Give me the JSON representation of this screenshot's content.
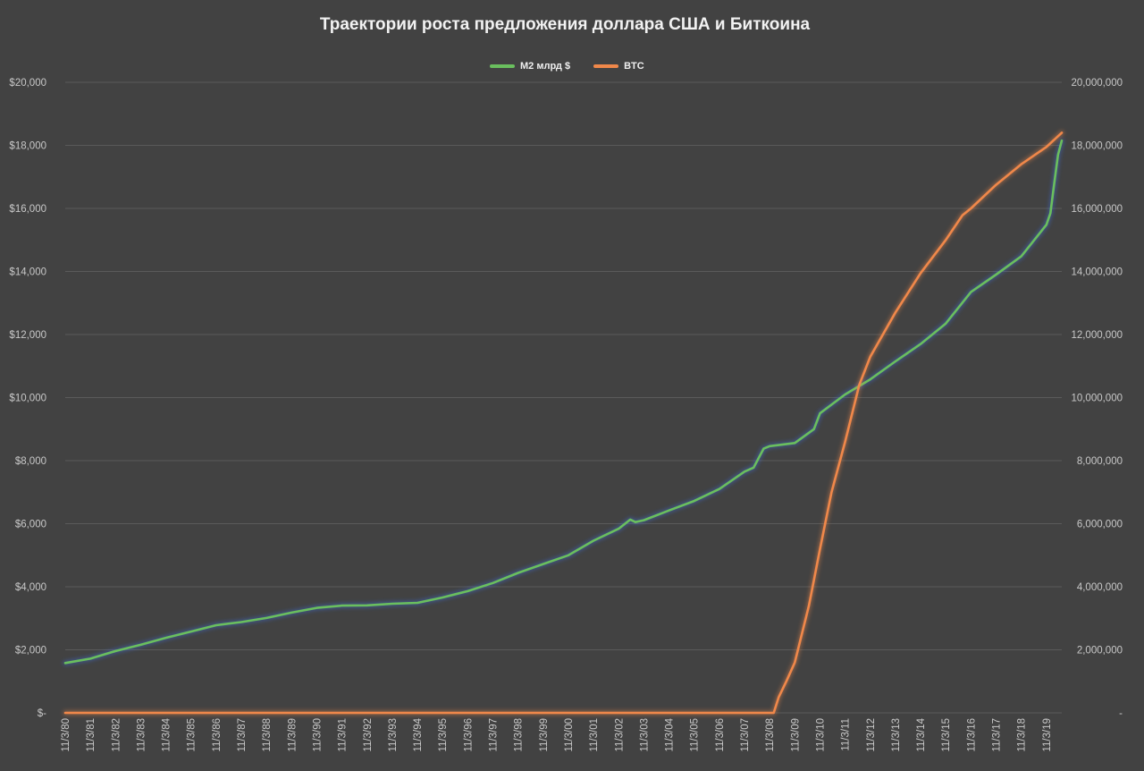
{
  "chart_data": {
    "type": "line",
    "title": "Траектории роста предложения доллара США и Биткоина",
    "legend_position": "top-center",
    "grid": true,
    "x_labels": [
      "11/3/80",
      "11/3/81",
      "11/3/82",
      "11/3/83",
      "11/3/84",
      "11/3/85",
      "11/3/86",
      "11/3/87",
      "11/3/88",
      "11/3/89",
      "11/3/90",
      "11/3/91",
      "11/3/92",
      "11/3/93",
      "11/3/94",
      "11/3/95",
      "11/3/96",
      "11/3/97",
      "11/3/98",
      "11/3/99",
      "11/3/00",
      "11/3/01",
      "11/3/02",
      "11/3/03",
      "11/3/04",
      "11/3/05",
      "11/3/06",
      "11/3/07",
      "11/3/08",
      "11/3/09",
      "11/3/10",
      "11/3/11",
      "11/3/12",
      "11/3/13",
      "11/3/14",
      "11/3/15",
      "11/3/16",
      "11/3/17",
      "11/3/18",
      "11/3/19"
    ],
    "x_range": [
      1980.84,
      2020.45
    ],
    "y_left": {
      "range": [
        0,
        20000
      ],
      "ticks": [
        0,
        2000,
        4000,
        6000,
        8000,
        10000,
        12000,
        14000,
        16000,
        18000,
        20000
      ],
      "tick_labels": [
        "$-",
        "$2,000",
        "$4,000",
        "$6,000",
        "$8,000",
        "$10,000",
        "$12,000",
        "$14,000",
        "$16,000",
        "$18,000",
        "$20,000"
      ]
    },
    "y_right": {
      "range": [
        0,
        20000000
      ],
      "ticks": [
        0,
        2000000,
        4000000,
        6000000,
        8000000,
        10000000,
        12000000,
        14000000,
        16000000,
        18000000,
        20000000
      ],
      "tick_labels": [
        "-",
        "2,000,000",
        "4,000,000",
        "6,000,000",
        "8,000,000",
        "10,000,000",
        "12,000,000",
        "14,000,000",
        "16,000,000",
        "18,000,000",
        "20,000,000"
      ]
    },
    "series": [
      {
        "name": "M2 млрд $",
        "axis": "left",
        "color": "#6abf5e",
        "points": [
          [
            1980.84,
            1580
          ],
          [
            1981.84,
            1720
          ],
          [
            1982.84,
            1960
          ],
          [
            1983.84,
            2160
          ],
          [
            1984.84,
            2380
          ],
          [
            1985.84,
            2580
          ],
          [
            1986.84,
            2780
          ],
          [
            1987.84,
            2880
          ],
          [
            1988.84,
            3010
          ],
          [
            1989.84,
            3180
          ],
          [
            1990.84,
            3330
          ],
          [
            1991.84,
            3400
          ],
          [
            1992.84,
            3410
          ],
          [
            1993.84,
            3460
          ],
          [
            1994.84,
            3490
          ],
          [
            1995.84,
            3660
          ],
          [
            1996.84,
            3860
          ],
          [
            1997.84,
            4120
          ],
          [
            1998.84,
            4440
          ],
          [
            1999.84,
            4720
          ],
          [
            2000.84,
            5000
          ],
          [
            2001.84,
            5460
          ],
          [
            2002.84,
            5840
          ],
          [
            2003.3,
            6130
          ],
          [
            2003.5,
            6050
          ],
          [
            2003.84,
            6110
          ],
          [
            2004.84,
            6420
          ],
          [
            2005.84,
            6720
          ],
          [
            2006.84,
            7100
          ],
          [
            2007.84,
            7650
          ],
          [
            2008.2,
            7780
          ],
          [
            2008.6,
            8380
          ],
          [
            2008.84,
            8460
          ],
          [
            2009.84,
            8560
          ],
          [
            2010.6,
            9000
          ],
          [
            2010.84,
            9500
          ],
          [
            2011.84,
            10100
          ],
          [
            2012.84,
            10580
          ],
          [
            2013.84,
            11150
          ],
          [
            2014.84,
            11700
          ],
          [
            2015.84,
            12350
          ],
          [
            2016.84,
            13350
          ],
          [
            2017.84,
            13900
          ],
          [
            2018.84,
            14480
          ],
          [
            2019.84,
            15480
          ],
          [
            2020.0,
            15850
          ],
          [
            2020.15,
            16800
          ],
          [
            2020.3,
            17700
          ],
          [
            2020.45,
            18150
          ]
        ]
      },
      {
        "name": "BTC",
        "axis": "right",
        "color": "#f0884a",
        "points": [
          [
            1980.84,
            0
          ],
          [
            2009.0,
            0
          ],
          [
            2009.2,
            500000
          ],
          [
            2009.5,
            1000000
          ],
          [
            2009.84,
            1600000
          ],
          [
            2010.4,
            3400000
          ],
          [
            2010.84,
            5200000
          ],
          [
            2011.3,
            7000000
          ],
          [
            2011.84,
            8600000
          ],
          [
            2012.4,
            10400000
          ],
          [
            2012.84,
            11300000
          ],
          [
            2013.84,
            12700000
          ],
          [
            2014.84,
            13950000
          ],
          [
            2015.84,
            15000000
          ],
          [
            2016.5,
            15780000
          ],
          [
            2016.84,
            16000000
          ],
          [
            2017.84,
            16750000
          ],
          [
            2018.84,
            17400000
          ],
          [
            2019.84,
            17950000
          ],
          [
            2020.45,
            18400000
          ]
        ]
      }
    ]
  }
}
